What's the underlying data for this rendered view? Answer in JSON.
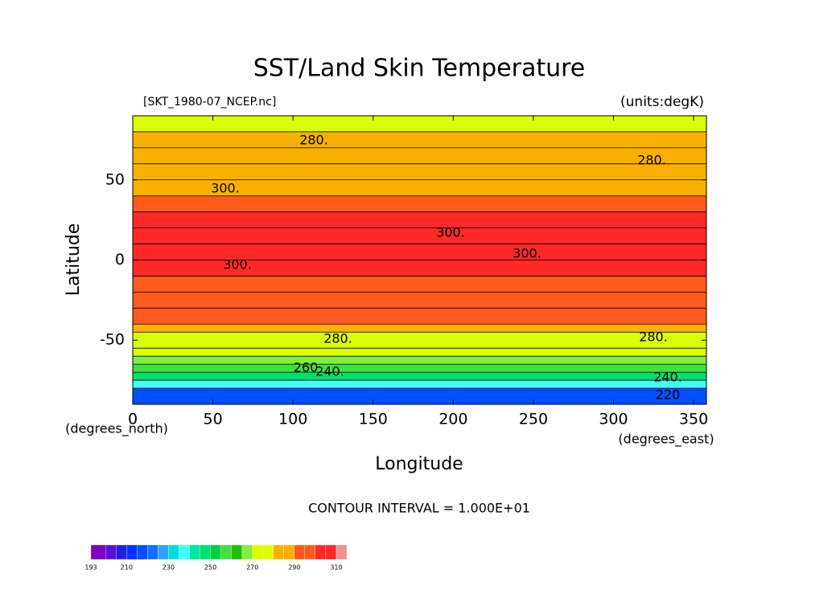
{
  "chart_data": {
    "type": "zonal-contour",
    "title": "SST/Land Skin Temperature",
    "subtitle_left": "[SKT_1980-07_NCEP.nc]",
    "subtitle_right": "(units:degK)",
    "xlabel": "Longitude",
    "ylabel": "Latitude",
    "x_unit": "(degrees_east)",
    "y_unit": "(degrees_north)",
    "footer": "CONTOUR INTERVAL = 1.000E+01",
    "xlim": [
      0,
      358
    ],
    "ylim": [
      -90,
      90
    ],
    "xticks": [
      0,
      50,
      100,
      150,
      200,
      250,
      300,
      350
    ],
    "yticks": [
      -50,
      0,
      50
    ],
    "lat_edges": [
      -90,
      -80,
      -75,
      -70,
      -65,
      -60,
      -55,
      -45,
      -40,
      -30,
      -20,
      -10,
      0,
      10,
      20,
      30,
      40,
      50,
      60,
      70,
      80,
      90
    ],
    "values": [
      215,
      235,
      245,
      255,
      265,
      273,
      277,
      285,
      290,
      295,
      297,
      300,
      302,
      302,
      302,
      295,
      287,
      285,
      283,
      280,
      275
    ],
    "contour_labels": [
      "280.",
      "300.",
      "300.",
      "300.",
      "300.",
      "280.",
      "280.",
      "280.",
      "260",
      "240.",
      "240.",
      "220"
    ],
    "levels": [
      193,
      200,
      205,
      210,
      215,
      220,
      225,
      230,
      235,
      240,
      245,
      250,
      255,
      260,
      265,
      270,
      275,
      280,
      285,
      290,
      295,
      300,
      305,
      310,
      315
    ],
    "colors": [
      "#8000c0",
      "#5a10d8",
      "#2020e0",
      "#0030ff",
      "#0050ff",
      "#1070ff",
      "#30a0ff",
      "#00dcdc",
      "#40ffff",
      "#00e8a0",
      "#00e070",
      "#00d040",
      "#40e040",
      "#20c000",
      "#80f040",
      "#dcff00",
      "#dcff00",
      "#f9b000",
      "#f9b000",
      "#ff5a1a",
      "#ff5a1a",
      "#ff2828",
      "#ff2828",
      "#f09090"
    ],
    "colorbar_ticks": [
      193,
      210,
      230,
      250,
      270,
      290,
      310
    ]
  }
}
